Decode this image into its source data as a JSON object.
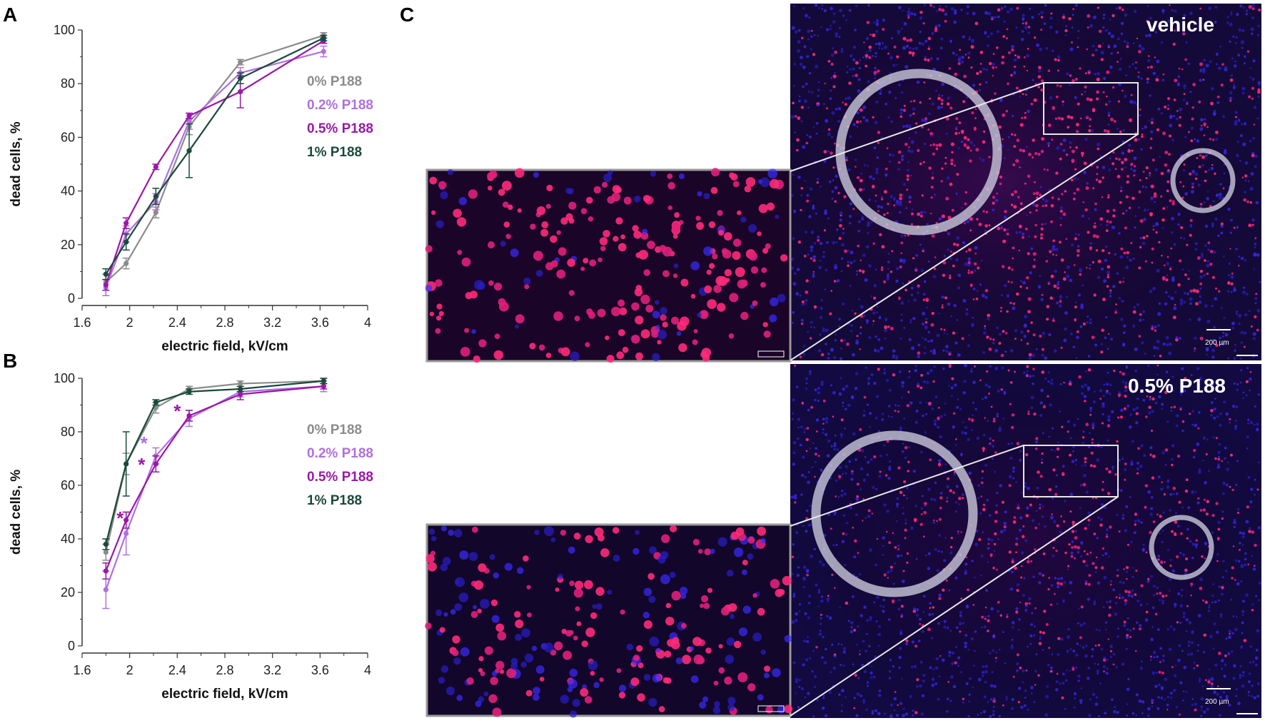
{
  "panels": {
    "a": "A",
    "b": "B",
    "c": "C"
  },
  "colors": {
    "p0": "#8c8c8c",
    "p02": "#b070e0",
    "p05": "#9a18a8",
    "p1": "#1a4a3a"
  },
  "chart_data": [
    {
      "type": "line",
      "panel": "A",
      "xlabel": "electric field, kV/cm",
      "ylabel": "dead cells, %",
      "xlim": [
        1.6,
        4
      ],
      "ylim": [
        0,
        100
      ],
      "xticks": [
        "1.6",
        "2",
        "2.4",
        "2.8",
        "3.2",
        "3.6",
        "4"
      ],
      "yticks": [
        "0",
        "20",
        "40",
        "60",
        "80",
        "100"
      ],
      "legend_position": "right",
      "series": [
        {
          "name": "0% P188",
          "color": "#8c8c8c",
          "x": [
            1.8,
            1.97,
            2.22,
            2.5,
            2.93,
            3.63
          ],
          "y": [
            6,
            13,
            32,
            64,
            88,
            98
          ],
          "err": [
            3,
            2,
            2,
            3,
            1,
            1
          ]
        },
        {
          "name": "0.2% P188",
          "color": "#b070e0",
          "x": [
            1.8,
            1.97,
            2.22,
            2.5,
            2.93,
            3.63
          ],
          "y": [
            4,
            24,
            36,
            66,
            84,
            92
          ],
          "err": [
            3,
            3,
            3,
            3,
            2,
            2
          ]
        },
        {
          "name": "0.5% P188",
          "color": "#9a18a8",
          "x": [
            1.8,
            1.97,
            2.22,
            2.5,
            2.93,
            3.63
          ],
          "y": [
            5,
            28,
            49,
            68,
            77,
            96
          ],
          "err": [
            2,
            2,
            1,
            1,
            6,
            1
          ]
        },
        {
          "name": "1% P188",
          "color": "#1a4a3a",
          "x": [
            1.8,
            1.97,
            2.22,
            2.5,
            2.93,
            3.63
          ],
          "y": [
            9,
            21,
            38,
            55,
            82,
            97
          ],
          "err": [
            2,
            3,
            3,
            10,
            2,
            1
          ]
        }
      ]
    },
    {
      "type": "line",
      "panel": "B",
      "xlabel": "electric field, kV/cm",
      "ylabel": "dead cells, %",
      "xlim": [
        1.6,
        4
      ],
      "ylim": [
        0,
        100
      ],
      "xticks": [
        "1.6",
        "2",
        "2.4",
        "2.8",
        "3.2",
        "3.6",
        "4"
      ],
      "yticks": [
        "0",
        "20",
        "40",
        "60",
        "80",
        "100"
      ],
      "legend_position": "right",
      "series": [
        {
          "name": "0% P188",
          "color": "#8c8c8c",
          "x": [
            1.8,
            1.97,
            2.22,
            2.5,
            2.93,
            3.63
          ],
          "y": [
            35,
            68,
            89,
            96,
            98,
            99
          ],
          "err": [
            3,
            4,
            2,
            1,
            1,
            1
          ]
        },
        {
          "name": "0.2% P188",
          "color": "#b070e0",
          "x": [
            1.8,
            1.97,
            2.22,
            2.5,
            2.93,
            3.63
          ],
          "y": [
            21,
            42,
            71,
            85,
            95,
            97
          ],
          "err": [
            7,
            8,
            3,
            3,
            2,
            2
          ]
        },
        {
          "name": "0.5% P188",
          "color": "#9a18a8",
          "x": [
            1.8,
            1.97,
            2.22,
            2.5,
            2.93,
            3.63
          ],
          "y": [
            28,
            47,
            68,
            86,
            94,
            97
          ],
          "err": [
            3,
            3,
            3,
            2,
            2,
            1
          ]
        },
        {
          "name": "1% P188",
          "color": "#1a4a3a",
          "x": [
            1.8,
            1.97,
            2.22,
            2.5,
            2.93,
            3.63
          ],
          "y": [
            38,
            68,
            91,
            95,
            96,
            99
          ],
          "err": [
            2,
            12,
            1,
            1,
            1,
            1
          ]
        }
      ],
      "significance_marks": [
        {
          "text": "*",
          "x": 1.92,
          "y": 48,
          "color": "#9a18a8"
        },
        {
          "text": "*",
          "x": 2.12,
          "y": 76,
          "color": "#b070e0"
        },
        {
          "text": "*",
          "x": 2.1,
          "y": 68,
          "color": "#9a18a8"
        },
        {
          "text": "*",
          "x": 2.4,
          "y": 88,
          "color": "#9a18a8"
        }
      ]
    }
  ],
  "micrographs": {
    "top_label": "vehicle",
    "bottom_label": "0.5% P188",
    "scale_bar_label": "200 µm"
  }
}
